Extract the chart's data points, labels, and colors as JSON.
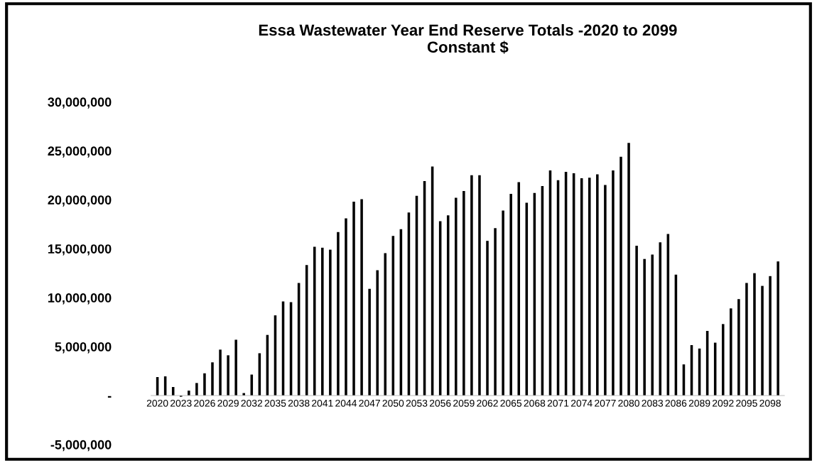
{
  "chart_data": {
    "type": "bar",
    "title": "Essa Wastewater Year End Reserve Totals -2020 to 2099\nConstant $",
    "categories": [
      "2020",
      null,
      null,
      "2023",
      null,
      null,
      "2026",
      null,
      null,
      "2029",
      null,
      null,
      "2032",
      null,
      null,
      "2035",
      null,
      null,
      "2038",
      null,
      null,
      "2041",
      null,
      null,
      "2044",
      null,
      null,
      "2047",
      null,
      null,
      "2050",
      null,
      null,
      "2053",
      null,
      null,
      "2056",
      null,
      null,
      "2059",
      null,
      null,
      "2062",
      null,
      null,
      "2065",
      null,
      null,
      "2068",
      null,
      null,
      "2071",
      null,
      null,
      "2074",
      null,
      null,
      "2077",
      null,
      null,
      "2080",
      null,
      null,
      "2083",
      null,
      null,
      "2086",
      null,
      null,
      "2089",
      null,
      null,
      "2092",
      null,
      null,
      "2095",
      null,
      null,
      "2098",
      null
    ],
    "values": [
      1880000,
      1960000,
      870000,
      -120000,
      500000,
      1280000,
      2270000,
      3390000,
      4690000,
      4110000,
      5700000,
      250000,
      2140000,
      4320000,
      6190000,
      8190000,
      9620000,
      9540000,
      11490000,
      13330000,
      15200000,
      15100000,
      14900000,
      16700000,
      18100000,
      19800000,
      20050000,
      10900000,
      12800000,
      14550000,
      16300000,
      17000000,
      18700000,
      20400000,
      21900000,
      23400000,
      17800000,
      18400000,
      20200000,
      20900000,
      22500000,
      22500000,
      15800000,
      17100000,
      18900000,
      20600000,
      21800000,
      19700000,
      20700000,
      21400000,
      23000000,
      22000000,
      22850000,
      22700000,
      22200000,
      22250000,
      22600000,
      21500000,
      23000000,
      24400000,
      25800000,
      15300000,
      13950000,
      14400000,
      15650000,
      16500000,
      12350000,
      3180000,
      5150000,
      4800000,
      6600000,
      5400000,
      7300000,
      8900000,
      9850000,
      11500000,
      12500000,
      11200000,
      12200000,
      13700000
    ],
    "color": "#000000",
    "ylim": [
      -5000000,
      30000000
    ],
    "yticks": [
      {
        "value": -5000000,
        "label": "-5,000,000"
      },
      {
        "value": 0,
        "label": "-"
      },
      {
        "value": 5000000,
        "label": "5,000,000"
      },
      {
        "value": 10000000,
        "label": "10,000,000"
      },
      {
        "value": 15000000,
        "label": "15,000,000"
      },
      {
        "value": 20000000,
        "label": "20,000,000"
      },
      {
        "value": 25000000,
        "label": "25,000,000"
      },
      {
        "value": 30000000,
        "label": "30,000,000"
      }
    ],
    "grid": false
  }
}
